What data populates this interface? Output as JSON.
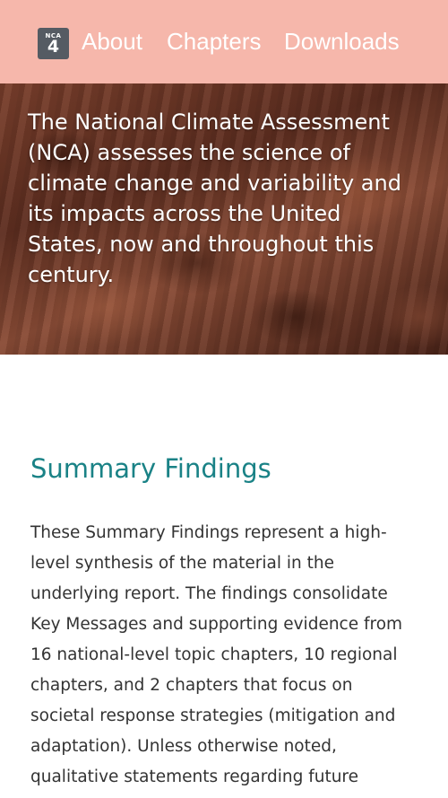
{
  "header": {
    "logo": {
      "small": "NCA",
      "big": "4"
    },
    "nav": [
      {
        "label": "About"
      },
      {
        "label": "Chapters"
      },
      {
        "label": "Downloads"
      }
    ],
    "background_color": "#f6b7ab"
  },
  "hero": {
    "text": "The National Climate Assessment (NCA) assesses the science of climate change and variability and its impacts across the United States, now and throughout this century."
  },
  "summary": {
    "title": "Summary Findings",
    "title_color": "#1a8286",
    "body": "These Summary Findings represent a high-level synthesis of the material in the underlying report. The findings consolidate Key Messages and supporting evidence from 16 national-level topic chapters, 10 regional chapters, and 2 chapters that focus on societal response strategies (mitigation and adaptation). Unless otherwise noted, qualitative statements regarding future"
  }
}
